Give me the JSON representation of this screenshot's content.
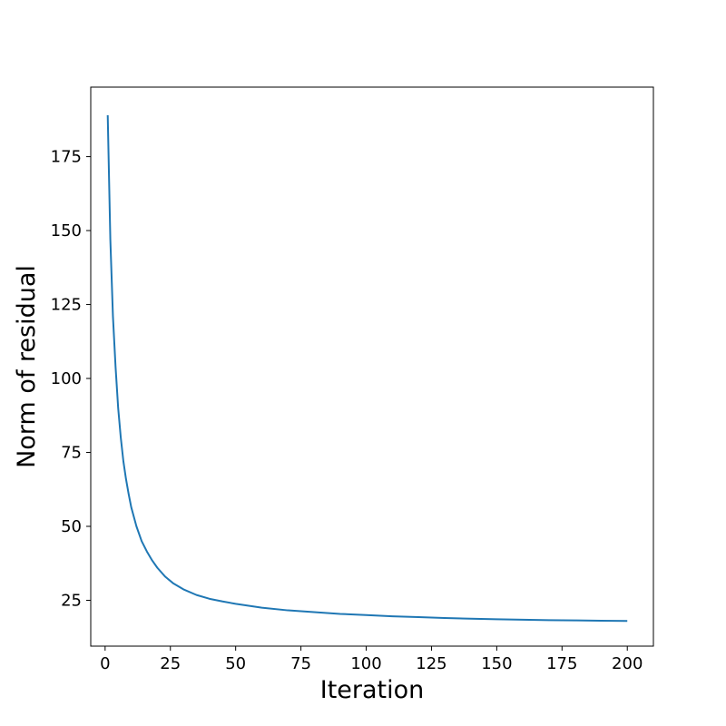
{
  "chart_data": {
    "type": "line",
    "title": "",
    "xlabel": "Iteration",
    "ylabel": "Norm of residual",
    "xlim": [
      -5.5,
      210
    ],
    "ylim": [
      9.5,
      198.5
    ],
    "grid": false,
    "x_ticks": [
      0,
      25,
      50,
      75,
      100,
      125,
      150,
      175,
      200
    ],
    "y_ticks": [
      25,
      50,
      75,
      100,
      125,
      150,
      175
    ],
    "series": [
      {
        "color": "#1f77b4",
        "x": [
          1,
          2,
          3,
          4,
          5,
          6,
          7,
          8,
          9,
          10,
          12,
          14,
          16,
          18,
          20,
          23,
          26,
          30,
          35,
          40,
          45,
          50,
          60,
          70,
          80,
          90,
          100,
          110,
          120,
          130,
          140,
          150,
          160,
          170,
          180,
          190,
          200
        ],
        "y": [
          189,
          147,
          121,
          104,
          90,
          80,
          72,
          66,
          61,
          56.5,
          50,
          45,
          41.5,
          38.5,
          36,
          33,
          30.8,
          28.7,
          26.8,
          25.5,
          24.6,
          23.8,
          22.5,
          21.6,
          21.0,
          20.4,
          20.0,
          19.6,
          19.3,
          19.0,
          18.8,
          18.6,
          18.45,
          18.3,
          18.2,
          18.1,
          18.0
        ]
      }
    ]
  }
}
